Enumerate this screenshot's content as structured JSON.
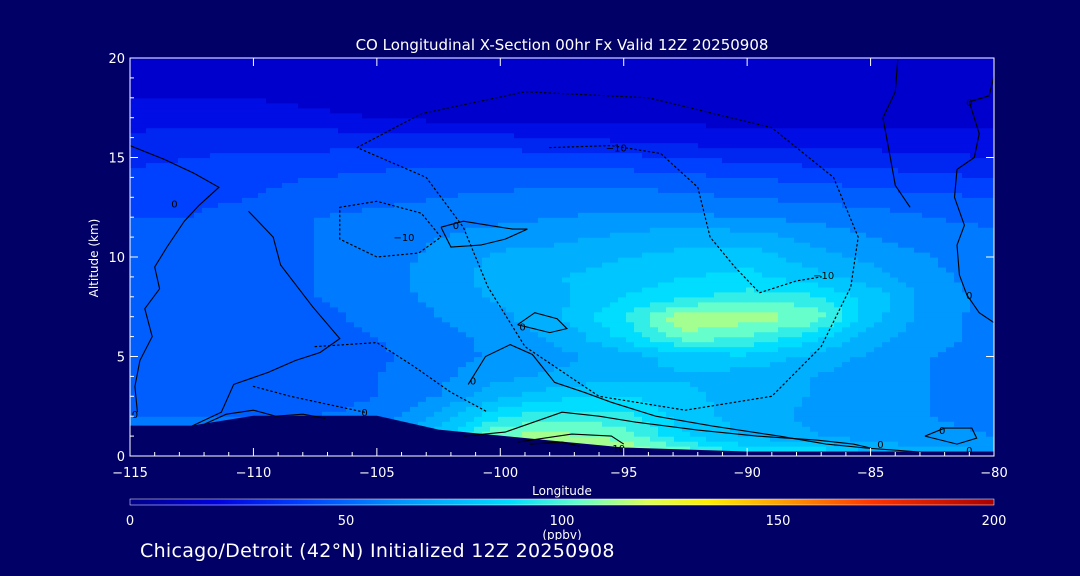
{
  "chart_data": {
    "type": "heatmap",
    "title": "CO Longitudinal X-Section 00hr  Fx Valid 12Z 20250908",
    "xlabel": "Longitude",
    "ylabel": "Altitude (km)",
    "xlim": [
      -115,
      -80
    ],
    "ylim": [
      0,
      20
    ],
    "x_ticks": [
      -115,
      -110,
      -105,
      -100,
      -95,
      -90,
      -85,
      -80
    ],
    "x_tick_labels": [
      "−115",
      "−110",
      "−105",
      "−100",
      "−95",
      "−90",
      "−85",
      "−80"
    ],
    "y_ticks": [
      0,
      5,
      10,
      15,
      20
    ],
    "y_tick_labels": [
      "0",
      "5",
      "10",
      "15",
      "20"
    ],
    "colorbar": {
      "label": "(ppbv)",
      "range": [
        0,
        200
      ],
      "ticks": [
        0,
        50,
        100,
        150,
        200
      ],
      "tick_labels": [
        "0",
        "50",
        "100",
        "150",
        "200"
      ]
    },
    "field": {
      "variable": "CO mixing ratio (ppbv)",
      "lon_grid": [
        -115,
        -112.5,
        -110,
        -107.5,
        -105,
        -102.5,
        -100,
        -97.5,
        -95,
        -92.5,
        -90,
        -87.5,
        -85,
        -82.5,
        -80
      ],
      "alt_grid": [
        0,
        1,
        2,
        3,
        4,
        5,
        6,
        7,
        8,
        9,
        10,
        11,
        12,
        13,
        14,
        15,
        16,
        17,
        18,
        19,
        20
      ],
      "values": [
        [
          0,
          0,
          0,
          0,
          0,
          0,
          118,
          122,
          120,
          110,
          95,
          100,
          80,
          75,
          70
        ],
        [
          55,
          55,
          55,
          55,
          58,
          80,
          110,
          110,
          105,
          85,
          75,
          70,
          62,
          62,
          60
        ],
        [
          52,
          52,
          52,
          52,
          55,
          70,
          92,
          98,
          95,
          80,
          72,
          66,
          62,
          60,
          58
        ],
        [
          50,
          48,
          48,
          48,
          52,
          60,
          75,
          82,
          85,
          78,
          72,
          68,
          64,
          60,
          58
        ],
        [
          50,
          48,
          46,
          46,
          52,
          58,
          66,
          70,
          74,
          75,
          72,
          68,
          64,
          60,
          58
        ],
        [
          50,
          48,
          46,
          46,
          50,
          56,
          62,
          66,
          72,
          80,
          82,
          74,
          66,
          60,
          58
        ],
        [
          52,
          48,
          46,
          48,
          52,
          58,
          62,
          70,
          86,
          105,
          100,
          88,
          72,
          62,
          58
        ],
        [
          52,
          50,
          48,
          50,
          54,
          60,
          66,
          76,
          92,
          115,
          112,
          108,
          80,
          62,
          58
        ],
        [
          52,
          50,
          50,
          52,
          56,
          62,
          70,
          74,
          84,
          90,
          96,
          94,
          82,
          64,
          58
        ],
        [
          50,
          48,
          50,
          52,
          56,
          64,
          72,
          76,
          80,
          84,
          86,
          80,
          72,
          62,
          56
        ],
        [
          48,
          48,
          50,
          52,
          56,
          62,
          70,
          72,
          76,
          78,
          82,
          72,
          66,
          60,
          55
        ],
        [
          46,
          46,
          50,
          52,
          56,
          60,
          64,
          66,
          70,
          74,
          72,
          66,
          60,
          56,
          54
        ],
        [
          44,
          44,
          48,
          52,
          54,
          56,
          58,
          60,
          62,
          62,
          60,
          58,
          56,
          52,
          50
        ],
        [
          42,
          42,
          44,
          48,
          50,
          52,
          54,
          56,
          56,
          54,
          52,
          50,
          48,
          46,
          44
        ],
        [
          38,
          40,
          42,
          44,
          46,
          48,
          48,
          48,
          48,
          46,
          44,
          42,
          40,
          38,
          36
        ],
        [
          34,
          36,
          38,
          38,
          40,
          40,
          40,
          40,
          38,
          36,
          34,
          32,
          32,
          30,
          28
        ],
        [
          30,
          32,
          32,
          32,
          32,
          32,
          30,
          28,
          26,
          24,
          22,
          22,
          22,
          22,
          22
        ],
        [
          24,
          24,
          24,
          22,
          20,
          18,
          18,
          18,
          18,
          18,
          18,
          18,
          18,
          18,
          18
        ],
        [
          20,
          20,
          20,
          18,
          16,
          16,
          16,
          16,
          16,
          16,
          16,
          16,
          16,
          16,
          16
        ],
        [
          18,
          18,
          18,
          16,
          16,
          16,
          16,
          16,
          16,
          16,
          16,
          16,
          16,
          16,
          16
        ],
        [
          16,
          16,
          16,
          16,
          16,
          16,
          16,
          16,
          16,
          16,
          16,
          16,
          16,
          16,
          16
        ]
      ],
      "terrain_altitude_km": [
        1.5,
        1.5,
        2.0,
        2.0,
        2.0,
        1.3,
        1.0,
        0.7,
        0.4,
        0.3,
        0.2,
        0.2,
        0.2,
        0.2,
        0.2
      ],
      "contour_labels": [
        {
          "text": "0",
          "lon": -113.2,
          "alt": 12.7
        },
        {
          "text": "−10",
          "lon": -103.9,
          "alt": 11.0
        },
        {
          "text": "−10",
          "lon": -95.3,
          "alt": 15.5
        },
        {
          "text": "0",
          "lon": -101.8,
          "alt": 11.6
        },
        {
          "text": "−10",
          "lon": -86.9,
          "alt": 9.1
        },
        {
          "text": "0",
          "lon": -99.1,
          "alt": 6.5
        },
        {
          "text": "0",
          "lon": -101.1,
          "alt": 3.8
        },
        {
          "text": "0",
          "lon": -114.8,
          "alt": 2.1
        },
        {
          "text": "0",
          "lon": -105.5,
          "alt": 2.2
        },
        {
          "text": "10",
          "lon": -95.2,
          "alt": 0.4
        },
        {
          "text": "0",
          "lon": -84.6,
          "alt": 0.6
        },
        {
          "text": "0",
          "lon": -82.1,
          "alt": 1.3
        },
        {
          "text": "0",
          "lon": -81.0,
          "alt": 0.3
        },
        {
          "text": "0",
          "lon": -81.0,
          "alt": 8.1
        },
        {
          "text": "0",
          "lon": -81.0,
          "alt": 17.8
        }
      ]
    }
  },
  "footer": {
    "caption": "Chicago/Detroit (42°N) Initialized 12Z 20250908"
  }
}
